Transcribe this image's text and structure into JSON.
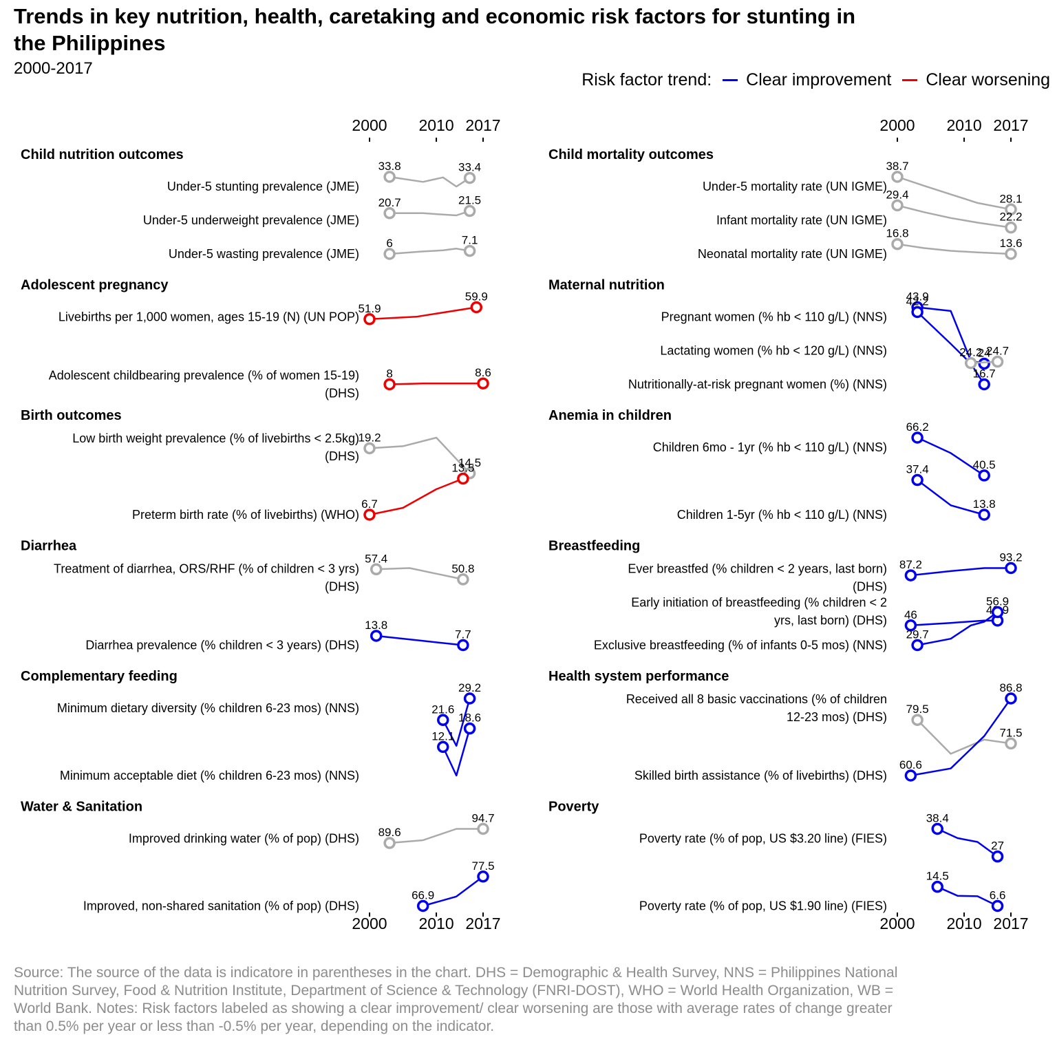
{
  "title": "Trends in key nutrition, health, caretaking and economic risk factors for stunting in the Philippines",
  "subtitle": "2000-2017",
  "legend": {
    "title": "Risk factor trend:",
    "items": [
      {
        "label": "Clear improvement",
        "color": "#0000ee"
      },
      {
        "label": "Clear worsening",
        "color": "#ee0000"
      }
    ]
  },
  "source": "Source: The source of the data is indicatore in parentheses in the chart. DHS = Demographic & Health Survey, NNS = Philippines National Nutrition Survey, Food & Nutrition Institute, Department of Science & Technology (FNRI-DOST), WHO = World Health Organization, WB = World Bank. Notes: Risk factors labeled as showing a clear improvement/ clear worsening are those with average rates of change greater than 0.5% per year or less than -0.5% per year, depending on the indicator.",
  "chart_data": {
    "type": "line",
    "x_axis": {
      "ticks": [
        2000,
        2010,
        2017
      ],
      "range": [
        2000,
        2017
      ]
    },
    "trend_colors": {
      "improvement": "#0000ee",
      "worsening": "#ee0000",
      "neutral": "#aaaaaa"
    },
    "panels": [
      {
        "title": "Child nutrition outcomes",
        "column": "left",
        "series": [
          {
            "label": "Under-5 stunting prevalence (JME)",
            "trend": "neutral",
            "points": [
              [
                2003,
                33.8
              ],
              [
                2008,
                32.0
              ],
              [
                2011,
                33.6
              ],
              [
                2013,
                30.3
              ],
              [
                2015,
                33.4
              ]
            ],
            "start_label": "33.8",
            "end_label": "33.4"
          },
          {
            "label": "Under-5 underweight prevalence (JME)",
            "trend": "neutral",
            "points": [
              [
                2003,
                20.7
              ],
              [
                2008,
                20.7
              ],
              [
                2011,
                20.2
              ],
              [
                2013,
                19.9
              ],
              [
                2015,
                21.5
              ]
            ],
            "start_label": "20.7",
            "end_label": "21.5"
          },
          {
            "label": "Under-5 wasting prevalence (JME)",
            "trend": "neutral",
            "points": [
              [
                2003,
                6
              ],
              [
                2008,
                6.9
              ],
              [
                2011,
                7.3
              ],
              [
                2013,
                7.9
              ],
              [
                2015,
                7.1
              ]
            ],
            "start_label": "6",
            "end_label": "7.1"
          }
        ]
      },
      {
        "title": "Adolescent pregnancy",
        "column": "left",
        "series": [
          {
            "label": "Livebirths per 1,000 women, ages 15-19 (N) (UN POP)",
            "trend": "worsening",
            "points": [
              [
                2000,
                51.9
              ],
              [
                2007,
                53.5
              ],
              [
                2016,
                59.9
              ]
            ],
            "start_label": "51.9",
            "end_label": "59.9"
          },
          {
            "label": "Adolescent childbearing prevalence (% of women 15-19) (DHS)",
            "trend": "worsening",
            "points": [
              [
                2003,
                8
              ],
              [
                2008,
                8.6
              ],
              [
                2013,
                8.6
              ],
              [
                2017,
                8.6
              ]
            ],
            "start_label": "8",
            "end_label": "8.6"
          }
        ]
      },
      {
        "title": "Birth outcomes",
        "column": "left",
        "series": [
          {
            "label": "Low birth weight prevalence (% of livebirths < 2.5kg) (DHS)",
            "trend": "neutral",
            "points": [
              [
                2000,
                19.2
              ],
              [
                2005,
                19.6
              ],
              [
                2010,
                21.2
              ],
              [
                2015,
                14.5
              ]
            ],
            "start_label": "19.2",
            "end_label": "14.5"
          },
          {
            "label": "Preterm birth rate (% of livebirths) (WHO)",
            "trend": "worsening",
            "points": [
              [
                2000,
                6.7
              ],
              [
                2005,
                8.0
              ],
              [
                2010,
                11.5
              ],
              [
                2014,
                13.5
              ]
            ],
            "start_label": "6.7",
            "end_label": "13.5"
          }
        ]
      },
      {
        "title": "Diarrhea",
        "column": "left",
        "series": [
          {
            "label": "Treatment of diarrhea, ORS/RHF (% of children < 3 yrs) (DHS)",
            "trend": "neutral",
            "points": [
              [
                2001,
                57.4
              ],
              [
                2006,
                58.2
              ],
              [
                2014,
                50.8
              ]
            ],
            "start_label": "57.4",
            "end_label": "50.8"
          },
          {
            "label": "Diarrhea prevalence (% children < 3 years) (DHS)",
            "trend": "improvement",
            "points": [
              [
                2001,
                13.8
              ],
              [
                2008,
                10.5
              ],
              [
                2014,
                7.7
              ]
            ],
            "start_label": "13.8",
            "end_label": "7.7"
          }
        ]
      },
      {
        "title": "Complementary feeding",
        "column": "left",
        "series": [
          {
            "label": "Minimum dietary diversity (% children 6-23 mos) (NNS)",
            "trend": "improvement",
            "points": [
              [
                2011,
                21.6
              ],
              [
                2013,
                12.5
              ],
              [
                2015,
                29.2
              ]
            ],
            "start_label": "21.6",
            "end_label": "29.2"
          },
          {
            "label": "Minimum acceptable diet (% children 6-23 mos) (NNS)",
            "trend": "improvement",
            "points": [
              [
                2011,
                12.1
              ],
              [
                2013,
                2.0
              ],
              [
                2015,
                18.6
              ]
            ],
            "start_label": "12.1",
            "end_label": "18.6"
          }
        ]
      },
      {
        "title": "Water & Sanitation",
        "column": "left",
        "series": [
          {
            "label": "Improved drinking water (% of pop) (DHS)",
            "trend": "neutral",
            "points": [
              [
                2003,
                89.6
              ],
              [
                2008,
                90.6
              ],
              [
                2013,
                94.7
              ],
              [
                2017,
                94.7
              ]
            ],
            "start_label": "89.6",
            "end_label": "94.7"
          },
          {
            "label": "Improved, non-shared sanitation (% of pop) (DHS)",
            "trend": "improvement",
            "points": [
              [
                2008,
                66.9
              ],
              [
                2013,
                70.3
              ],
              [
                2017,
                77.5
              ]
            ],
            "start_label": "66.9",
            "end_label": "77.5"
          }
        ]
      },
      {
        "title": "Child mortality outcomes",
        "column": "right",
        "series": [
          {
            "label": "Under-5 mortality rate (UN IGME)",
            "trend": "neutral",
            "points": [
              [
                2000,
                38.7
              ],
              [
                2004,
                35.8
              ],
              [
                2008,
                33.0
              ],
              [
                2012,
                30.2
              ],
              [
                2017,
                28.1
              ]
            ],
            "start_label": "38.7",
            "end_label": "28.1"
          },
          {
            "label": "Infant mortality rate (UN IGME)",
            "trend": "neutral",
            "points": [
              [
                2000,
                29.4
              ],
              [
                2004,
                27.2
              ],
              [
                2008,
                25.3
              ],
              [
                2012,
                23.8
              ],
              [
                2017,
                22.2
              ]
            ],
            "start_label": "29.4",
            "end_label": "22.2"
          },
          {
            "label": "Neonatal mortality rate (UN IGME)",
            "trend": "neutral",
            "points": [
              [
                2000,
                16.8
              ],
              [
                2004,
                15.5
              ],
              [
                2008,
                14.6
              ],
              [
                2012,
                14.1
              ],
              [
                2017,
                13.6
              ]
            ],
            "start_label": "16.8",
            "end_label": "13.6"
          }
        ]
      },
      {
        "title": "Maternal nutrition",
        "column": "right",
        "series": [
          {
            "label": "Pregnant women (% hb < 110 g/L) (NNS)",
            "trend": "improvement",
            "points": [
              [
                2003,
                43.9
              ],
              [
                2008,
                42.6
              ],
              [
                2011,
                25.0
              ],
              [
                2013,
                24.0
              ]
            ],
            "start_label": "43.9",
            "end_label": "24"
          },
          {
            "label": "Lactating women (% hb < 120 g/L) (NNS)",
            "trend": "improvement",
            "points": [
              [
                2003,
                42.2
              ],
              [
                2008,
                31.0
              ],
              [
                2011,
                24.0
              ],
              [
                2013,
                16.7
              ]
            ],
            "start_label": "42.2",
            "end_label": "16.7"
          },
          {
            "label": "Nutritionally-at-risk pregnant women (%) (NNS)",
            "trend": "neutral",
            "points": [
              [
                2011,
                24.2
              ],
              [
                2015,
                24.7
              ]
            ],
            "start_label": "24.2",
            "end_label": "24.7"
          }
        ]
      },
      {
        "title": "Anemia in children",
        "column": "right",
        "series": [
          {
            "label": "Children 6mo - 1yr (% hb < 110 g/L) (NNS)",
            "trend": "improvement",
            "points": [
              [
                2003,
                66.2
              ],
              [
                2008,
                55.7
              ],
              [
                2013,
                40.5
              ]
            ],
            "start_label": "66.2",
            "end_label": "40.5"
          },
          {
            "label": "Children 1-5yr (% hb < 110 g/L) (NNS)",
            "trend": "improvement",
            "points": [
              [
                2003,
                37.4
              ],
              [
                2008,
                20.2
              ],
              [
                2013,
                13.8
              ]
            ],
            "start_label": "37.4",
            "end_label": "13.8"
          }
        ]
      },
      {
        "title": "Breastfeeding",
        "column": "right",
        "series": [
          {
            "label": "Ever breastfed (% children < 2 years, last born) (DHS)",
            "trend": "improvement",
            "points": [
              [
                2002,
                87.2
              ],
              [
                2008,
                90.7
              ],
              [
                2013,
                93.2
              ],
              [
                2017,
                93.2
              ]
            ],
            "start_label": "87.2",
            "end_label": "93.2"
          },
          {
            "label": "Early initiation of breastfeeding (% children < 2 yrs, last born) (DHS)",
            "trend": "improvement",
            "points": [
              [
                2002,
                46.0
              ],
              [
                2008,
                48.0
              ],
              [
                2013,
                50.0
              ],
              [
                2015,
                49.9
              ]
            ],
            "start_label": "46",
            "end_label": "49.9"
          },
          {
            "label": "Exclusive breastfeeding (% of infants 0-5 mos) (NNS)",
            "trend": "improvement",
            "points": [
              [
                2003,
                29.7
              ],
              [
                2008,
                35.0
              ],
              [
                2011,
                46.0
              ],
              [
                2013,
                49.0
              ],
              [
                2015,
                56.9
              ]
            ],
            "start_label": "29.7",
            "end_label": "56.9"
          }
        ]
      },
      {
        "title": "Health system performance",
        "column": "right",
        "series": [
          {
            "label": "Received all 8 basic vaccinations (% of children 12-23 mos) (DHS)",
            "trend": "neutral",
            "points": [
              [
                2003,
                79.5
              ],
              [
                2008,
                68.0
              ],
              [
                2013,
                72.8
              ],
              [
                2017,
                71.5
              ]
            ],
            "start_label": "79.5",
            "end_label": "71.5"
          },
          {
            "label": "Skilled birth assistance (% of livebirths) (DHS)",
            "trend": "improvement",
            "points": [
              [
                2002,
                60.6
              ],
              [
                2008,
                63.0
              ],
              [
                2013,
                74.0
              ],
              [
                2017,
                86.8
              ]
            ],
            "start_label": "60.6",
            "end_label": "86.8"
          }
        ]
      },
      {
        "title": "Poverty",
        "column": "right",
        "series": [
          {
            "label": "Poverty rate (% of pop, US $3.20 line) (FIES)",
            "trend": "improvement",
            "points": [
              [
                2006,
                38.4
              ],
              [
                2009,
                34.6
              ],
              [
                2012,
                33.0
              ],
              [
                2015,
                27.0
              ]
            ],
            "start_label": "38.4",
            "end_label": "27"
          },
          {
            "label": "Poverty rate (% of pop, US $1.90 line) (FIES)",
            "trend": "improvement",
            "points": [
              [
                2006,
                14.5
              ],
              [
                2009,
                10.8
              ],
              [
                2012,
                10.6
              ],
              [
                2015,
                6.6
              ]
            ],
            "start_label": "14.5",
            "end_label": "6.6"
          }
        ]
      }
    ]
  }
}
